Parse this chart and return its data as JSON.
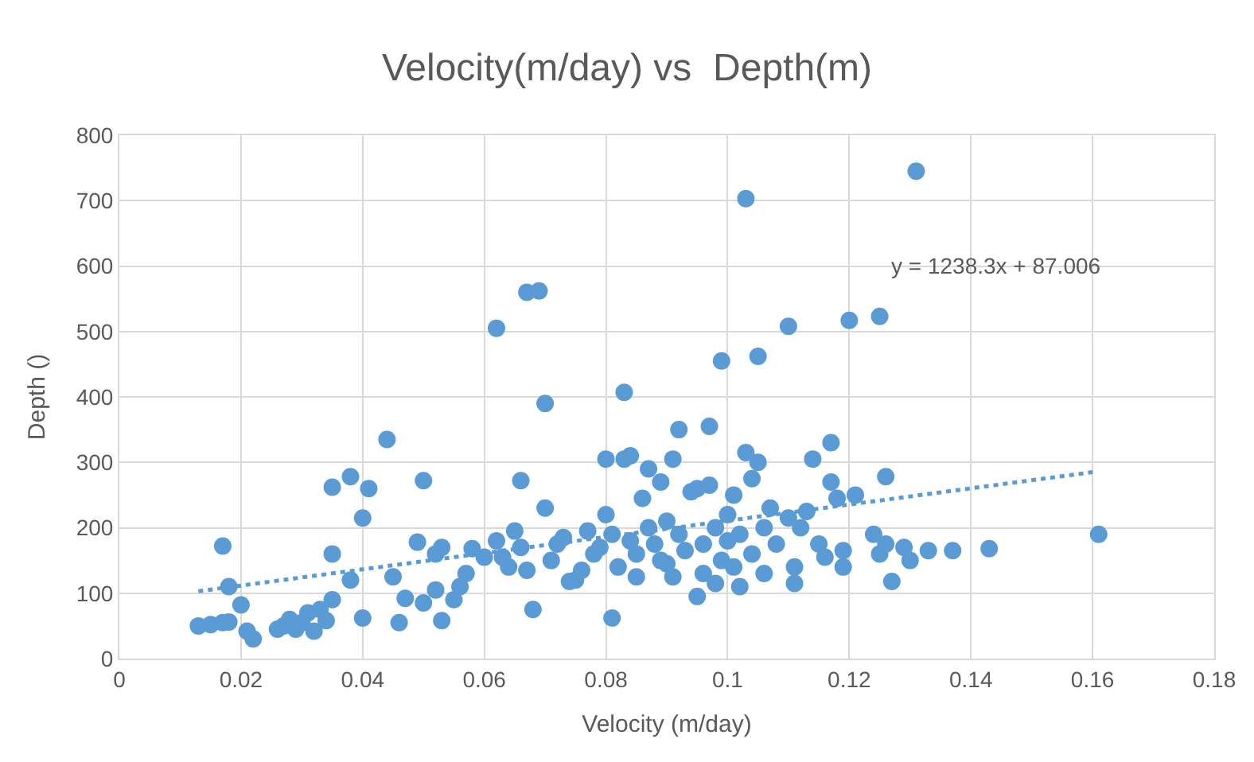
{
  "chart_data": {
    "type": "scatter",
    "title": "Velocity(m/day) vs  Depth(m)",
    "xlabel": "Velocity (m/day)",
    "ylabel": "Depth ()",
    "xlim": [
      0,
      0.18
    ],
    "xticks": [
      0,
      0.02,
      0.04,
      0.06,
      0.08,
      0.1,
      0.12,
      0.14,
      0.16,
      0.18
    ],
    "ylim": [
      0,
      800
    ],
    "yticks": [
      0,
      100,
      200,
      300,
      400,
      500,
      600,
      700,
      800
    ],
    "grid": true,
    "marker": "circle",
    "annotations": [
      "y = 1238.3x + 87.006"
    ],
    "series": [
      {
        "color": "#5b9bd5",
        "x": [
          0.013,
          0.015,
          0.017,
          0.018,
          0.017,
          0.018,
          0.02,
          0.021,
          0.022,
          0.026,
          0.027,
          0.028,
          0.029,
          0.03,
          0.031,
          0.032,
          0.033,
          0.034,
          0.035,
          0.035,
          0.035,
          0.038,
          0.038,
          0.04,
          0.04,
          0.041,
          0.044,
          0.045,
          0.046,
          0.047,
          0.049,
          0.05,
          0.05,
          0.052,
          0.052,
          0.053,
          0.053,
          0.055,
          0.056,
          0.057,
          0.058,
          0.06,
          0.062,
          0.062,
          0.063,
          0.064,
          0.065,
          0.066,
          0.066,
          0.067,
          0.068,
          0.067,
          0.069,
          0.07,
          0.07,
          0.071,
          0.072,
          0.073,
          0.074,
          0.075,
          0.076,
          0.077,
          0.078,
          0.079,
          0.08,
          0.08,
          0.081,
          0.081,
          0.082,
          0.083,
          0.083,
          0.084,
          0.084,
          0.085,
          0.085,
          0.086,
          0.087,
          0.087,
          0.088,
          0.089,
          0.089,
          0.09,
          0.09,
          0.091,
          0.091,
          0.092,
          0.092,
          0.093,
          0.094,
          0.095,
          0.095,
          0.096,
          0.096,
          0.097,
          0.097,
          0.098,
          0.098,
          0.099,
          0.099,
          0.1,
          0.1,
          0.101,
          0.101,
          0.102,
          0.102,
          0.103,
          0.103,
          0.104,
          0.104,
          0.105,
          0.105,
          0.106,
          0.106,
          0.107,
          0.108,
          0.11,
          0.11,
          0.111,
          0.111,
          0.112,
          0.113,
          0.114,
          0.115,
          0.116,
          0.117,
          0.117,
          0.118,
          0.119,
          0.119,
          0.12,
          0.121,
          0.124,
          0.125,
          0.125,
          0.126,
          0.126,
          0.127,
          0.129,
          0.131,
          0.13,
          0.133,
          0.137,
          0.143,
          0.161
        ],
        "values": [
          50,
          52,
          55,
          56,
          172,
          110,
          82,
          42,
          30,
          45,
          50,
          60,
          45,
          55,
          70,
          42,
          75,
          58,
          90,
          262,
          160,
          278,
          120,
          215,
          62,
          260,
          335,
          125,
          55,
          92,
          178,
          272,
          85,
          105,
          160,
          170,
          58,
          90,
          110,
          130,
          168,
          155,
          180,
          505,
          155,
          140,
          195,
          272,
          170,
          135,
          75,
          560,
          562,
          390,
          230,
          150,
          175,
          185,
          118,
          120,
          135,
          195,
          160,
          170,
          305,
          220,
          190,
          62,
          140,
          305,
          407,
          310,
          180,
          125,
          160,
          245,
          200,
          290,
          175,
          150,
          270,
          145,
          210,
          305,
          125,
          350,
          190,
          165,
          255,
          260,
          95,
          130,
          175,
          265,
          355,
          200,
          115,
          455,
          150,
          180,
          220,
          140,
          250,
          190,
          110,
          703,
          315,
          275,
          160,
          462,
          300,
          200,
          130,
          230,
          175,
          508,
          215,
          140,
          115,
          200,
          225,
          305,
          175,
          155,
          270,
          330,
          245,
          140,
          165,
          517,
          250,
          190,
          523,
          160,
          175,
          278,
          118,
          170,
          745,
          150,
          165,
          165,
          168,
          190
        ]
      },
      {
        "type": "line",
        "color": "#5b9bd5",
        "line_style": "dotted",
        "marker": "none",
        "x": [
          0.013,
          0.16
        ],
        "values": [
          103,
          285
        ]
      }
    ]
  }
}
